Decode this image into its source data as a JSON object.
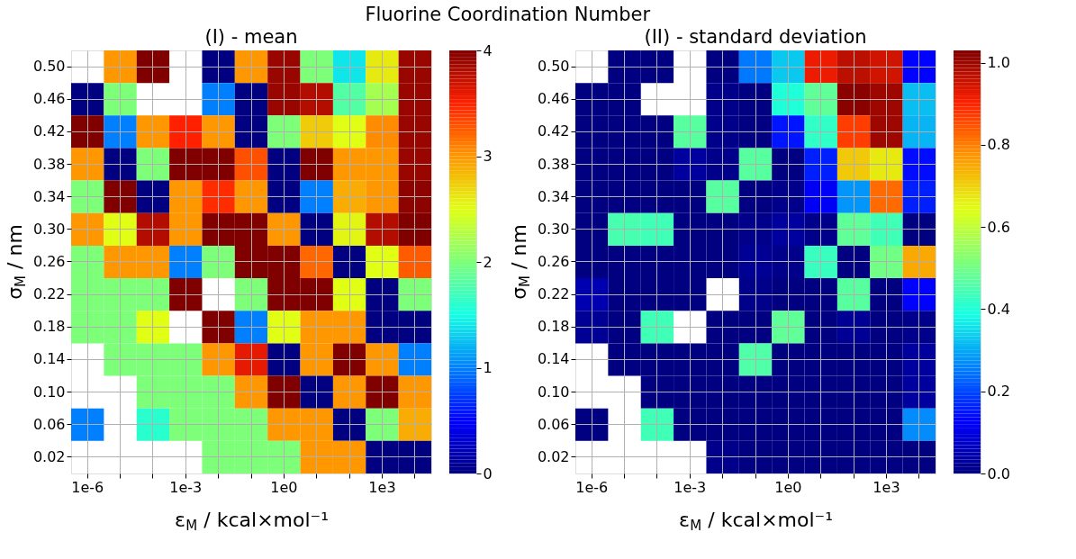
{
  "chart_data": [
    {
      "type": "heatmap",
      "title": "Fluorine Coordination Number",
      "subtitle": "(I) - mean",
      "xlabel": "ε$_{M}$ / kcal×mol⁻¹",
      "ylabel": "σ$_{M}$ / nm",
      "grid": true,
      "categories": [
        "1e-6",
        null,
        null,
        "1e-3",
        null,
        null,
        "1e0",
        null,
        null,
        "1e3",
        null
      ],
      "y_categories": [
        "0.50",
        "0.46",
        "0.42",
        "0.38",
        "0.34",
        "0.30",
        "0.26",
        "0.22",
        "0.18",
        "0.14",
        "0.10",
        "0.06",
        "0.02"
      ],
      "clim": [
        0,
        4
      ],
      "cticks": [
        0,
        1,
        2,
        3,
        4
      ],
      "cells": [
        [
          null,
          3,
          4,
          null,
          0,
          3,
          3.9,
          2,
          1.4,
          2.6,
          3.9
        ],
        [
          0,
          2,
          null,
          null,
          1,
          0,
          3.9,
          3.8,
          1.8,
          2.2,
          3.9
        ],
        [
          4,
          1,
          3,
          3.5,
          3,
          0,
          2,
          2.75,
          2.5,
          3.05,
          3.9
        ],
        [
          3,
          0,
          2,
          4,
          4,
          3.3,
          0,
          4,
          3,
          3,
          3.9
        ],
        [
          2,
          4,
          0,
          3,
          3.45,
          3,
          0,
          1,
          2.9,
          3,
          3.95
        ],
        [
          3,
          2.5,
          3.8,
          3,
          4,
          4,
          3,
          0,
          2.55,
          3.8,
          4
        ],
        [
          2,
          3,
          3,
          1,
          2,
          4,
          4,
          3.2,
          0,
          2.5,
          3.25
        ],
        [
          2,
          2,
          2,
          4,
          null,
          2,
          4,
          4,
          2.5,
          0,
          2
        ],
        [
          2,
          2,
          2.5,
          null,
          4,
          1,
          2.5,
          3,
          3,
          0,
          0
        ],
        [
          null,
          2,
          2,
          2,
          3,
          3.6,
          0,
          3,
          4,
          3,
          1
        ],
        [
          null,
          null,
          2,
          2,
          2,
          3,
          4,
          0,
          3,
          4,
          3
        ],
        [
          1,
          null,
          1.6,
          2,
          2,
          2,
          3,
          3,
          0,
          2,
          2.9
        ],
        [
          null,
          null,
          null,
          null,
          2,
          2,
          2,
          3,
          3,
          0,
          0
        ]
      ]
    },
    {
      "type": "heatmap",
      "subtitle": "(II) - standard deviation",
      "xlabel": "ε$_{M}$ / kcal×mol⁻¹",
      "ylabel": "σ$_{M}$ / nm",
      "grid": true,
      "categories": [
        "1e-6",
        null,
        null,
        "1e-3",
        null,
        null,
        "1e0",
        null,
        null,
        "1e3",
        null
      ],
      "y_categories": [
        "0.50",
        "0.46",
        "0.42",
        "0.38",
        "0.34",
        "0.30",
        "0.26",
        "0.22",
        "0.18",
        "0.14",
        "0.10",
        "0.06",
        "0.02"
      ],
      "clim": [
        0,
        1.03
      ],
      "cticks": [
        {
          "value": 0,
          "label": "0.0"
        },
        {
          "value": 0.2,
          "label": "0.2"
        },
        {
          "value": 0.4,
          "label": "0.4"
        },
        {
          "value": 0.6,
          "label": "0.6"
        },
        {
          "value": 0.8,
          "label": "0.8"
        },
        {
          "value": 1,
          "label": "1.0"
        }
      ],
      "cells": [
        [
          null,
          0,
          0,
          null,
          0,
          0.25,
          0.33,
          0.92,
          0.97,
          0.95,
          0.13
        ],
        [
          0,
          0,
          null,
          null,
          0.01,
          0,
          0.4,
          0.48,
          1.02,
          1,
          0.32
        ],
        [
          0,
          0,
          0,
          0.47,
          0.01,
          0,
          0.15,
          0.42,
          0.87,
          1,
          0.31
        ],
        [
          0,
          0,
          0,
          0.03,
          0.01,
          0.47,
          0,
          0.16,
          0.71,
          0.67,
          0.14
        ],
        [
          0,
          0,
          0,
          0,
          0.47,
          0,
          0.01,
          0.12,
          0.28,
          0.82,
          0.16
        ],
        [
          0,
          0.45,
          0.44,
          0,
          0,
          0.01,
          0.03,
          0.01,
          0.48,
          0.44,
          0
        ],
        [
          0,
          0,
          0,
          0,
          0,
          0.02,
          0.01,
          0.43,
          0,
          0.5,
          0.75
        ],
        [
          0.05,
          0,
          0,
          0,
          null,
          0.01,
          0,
          0,
          0.47,
          0,
          0.13
        ],
        [
          0.02,
          0,
          0.44,
          null,
          0,
          0,
          0.48,
          0,
          0.02,
          0,
          0.01
        ],
        [
          null,
          0,
          0,
          0,
          0,
          0.46,
          0,
          0,
          0,
          0,
          0.03
        ],
        [
          null,
          null,
          0,
          0,
          0,
          0,
          0,
          0,
          0,
          0,
          0.03
        ],
        [
          0,
          null,
          0.44,
          0,
          0,
          0,
          0,
          0,
          0,
          0,
          0.27
        ],
        [
          null,
          null,
          null,
          null,
          0.01,
          0,
          0,
          0,
          0,
          0,
          0
        ]
      ]
    }
  ]
}
